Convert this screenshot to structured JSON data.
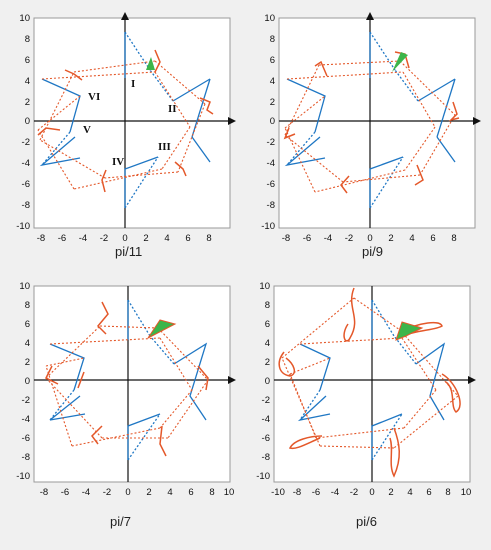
{
  "colors": {
    "blue": "#1f77c4",
    "orange": "#e4582a",
    "green": "#3cb54a",
    "axis": "#111111",
    "frame": "#9a9a9a"
  },
  "panels": [
    {
      "caption": "pi/11",
      "xticks": [
        "-8",
        "-6",
        "-4",
        "-2",
        "0",
        "2",
        "4",
        "6",
        "8"
      ],
      "yticks": [
        "10",
        "8",
        "6",
        "4",
        "2",
        "0",
        "-2",
        "-4",
        "-6",
        "-8",
        "-10"
      ],
      "roman_labels": [
        "I",
        "II",
        "III",
        "IV",
        "V",
        "VI"
      ]
    },
    {
      "caption": "pi/9",
      "xticks": [
        "-8",
        "-6",
        "-4",
        "-2",
        "0",
        "2",
        "4",
        "6",
        "8"
      ],
      "yticks": [
        "10",
        "8",
        "6",
        "4",
        "2",
        "0",
        "-2",
        "-4",
        "-6",
        "-8",
        "-10"
      ]
    },
    {
      "caption": "pi/7",
      "xticks": [
        "-8",
        "-6",
        "-4",
        "-2",
        "0",
        "2",
        "4",
        "6",
        "8",
        "10"
      ],
      "yticks": [
        "10",
        "8",
        "6",
        "4",
        "2",
        "0",
        "-2",
        "-4",
        "-6",
        "-8",
        "-10"
      ]
    },
    {
      "caption": "pi/6",
      "xticks": [
        "-10",
        "-8",
        "-6",
        "-4",
        "-2",
        "0",
        "2",
        "4",
        "6",
        "8",
        "10"
      ],
      "yticks": [
        "10",
        "8",
        "6",
        "4",
        "2",
        "0",
        "-2",
        "-4",
        "-6",
        "-8",
        "-10"
      ]
    }
  ]
}
